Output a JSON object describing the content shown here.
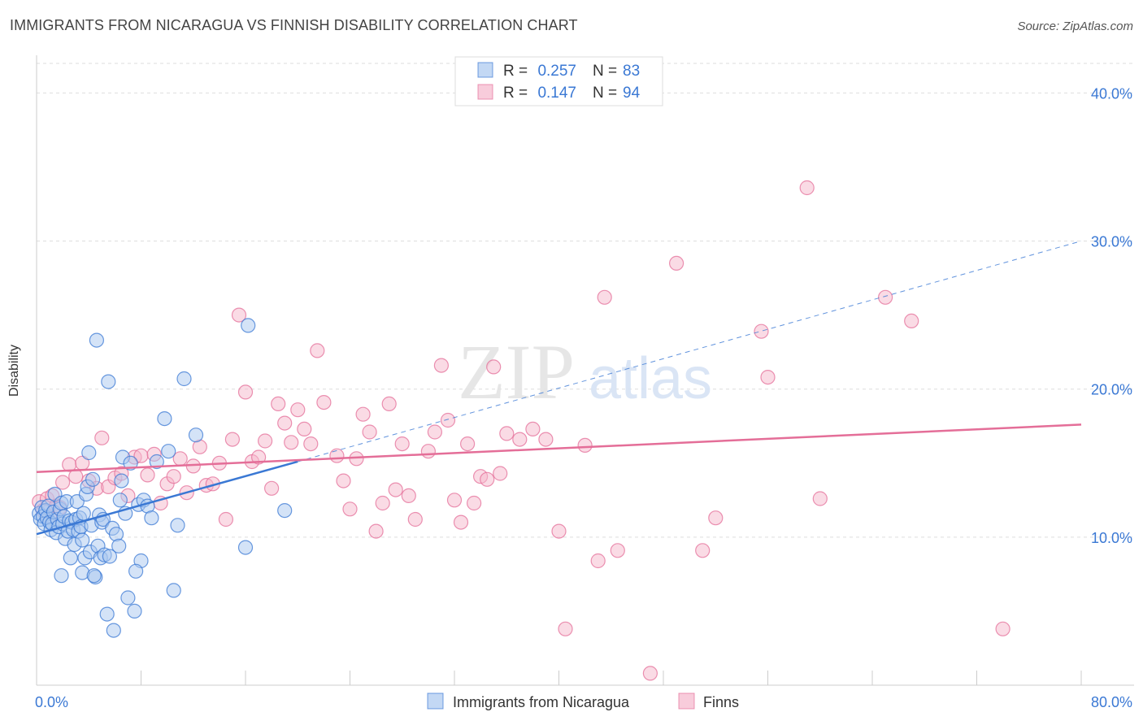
{
  "header": {
    "title": "IMMIGRANTS FROM NICARAGUA VS FINNISH DISABILITY CORRELATION CHART",
    "source": "Source: ZipAtlas.com"
  },
  "watermark": {
    "zip": "ZIP",
    "atlas": "atlas"
  },
  "colors": {
    "blue": "#3a78d4",
    "blue_fill": "#a9c8f0",
    "pink": "#e46e98",
    "pink_fill": "#f5b7cc",
    "axis_label": "#3a78d4",
    "grid": "#dddddd"
  },
  "chart_data": {
    "type": "scatter",
    "title": "IMMIGRANTS FROM NICARAGUA VS FINNISH DISABILITY CORRELATION CHART",
    "xlabel": "",
    "ylabel": "Disability",
    "xlim": [
      0,
      80
    ],
    "ylim": [
      0,
      42
    ],
    "x_tick_labels": [
      "0.0%",
      "80.0%"
    ],
    "y_ticks": [
      10,
      20,
      30,
      40
    ],
    "y_tick_labels": [
      "10.0%",
      "20.0%",
      "30.0%",
      "40.0%"
    ],
    "grid": true,
    "legend_position": "top-center",
    "legend": [
      {
        "r_label": "R =",
        "r_value": "0.257",
        "n_label": "N =",
        "n_value": "83"
      },
      {
        "r_label": "R =",
        "r_value": "0.147",
        "n_label": "N =",
        "n_value": "94"
      }
    ],
    "series": [
      {
        "name": "Immigrants from Nicaragua",
        "color": "#3a78d4",
        "trend": {
          "x": [
            0,
            20
          ],
          "y": [
            10.2,
            15.1
          ],
          "dashed_extension_x": [
            20,
            80
          ],
          "dashed_extension_y": [
            15.1,
            30.0
          ]
        },
        "points": [
          [
            0.2,
            11.6
          ],
          [
            0.3,
            11.2
          ],
          [
            0.4,
            12.0
          ],
          [
            0.5,
            11.4
          ],
          [
            0.6,
            10.9
          ],
          [
            0.7,
            11.8
          ],
          [
            0.8,
            11.3
          ],
          [
            0.9,
            12.1
          ],
          [
            1.0,
            11.0
          ],
          [
            1.1,
            10.5
          ],
          [
            1.2,
            10.9
          ],
          [
            1.3,
            11.7
          ],
          [
            1.4,
            12.9
          ],
          [
            1.5,
            10.3
          ],
          [
            1.6,
            11.2
          ],
          [
            1.7,
            10.7
          ],
          [
            1.8,
            11.9
          ],
          [
            1.9,
            12.3
          ],
          [
            2.0,
            10.9
          ],
          [
            2.1,
            11.4
          ],
          [
            2.2,
            9.9
          ],
          [
            2.3,
            12.4
          ],
          [
            2.4,
            10.4
          ],
          [
            2.5,
            11.1
          ],
          [
            2.6,
            8.6
          ],
          [
            2.7,
            11.0
          ],
          [
            2.8,
            10.5
          ],
          [
            2.9,
            9.5
          ],
          [
            3.0,
            11.2
          ],
          [
            3.1,
            12.4
          ],
          [
            3.2,
            10.4
          ],
          [
            3.3,
            11.3
          ],
          [
            3.4,
            10.7
          ],
          [
            3.5,
            9.8
          ],
          [
            3.6,
            11.6
          ],
          [
            3.7,
            8.6
          ],
          [
            3.8,
            12.9
          ],
          [
            3.9,
            13.4
          ],
          [
            4.0,
            15.7
          ],
          [
            4.1,
            9.0
          ],
          [
            4.2,
            10.8
          ],
          [
            4.3,
            13.9
          ],
          [
            4.5,
            7.3
          ],
          [
            4.6,
            23.3
          ],
          [
            4.7,
            9.4
          ],
          [
            4.8,
            11.5
          ],
          [
            4.9,
            8.6
          ],
          [
            5.0,
            11.0
          ],
          [
            5.1,
            11.2
          ],
          [
            5.2,
            8.8
          ],
          [
            5.4,
            4.8
          ],
          [
            5.5,
            20.5
          ],
          [
            5.6,
            8.7
          ],
          [
            5.8,
            10.6
          ],
          [
            5.9,
            3.7
          ],
          [
            6.1,
            10.2
          ],
          [
            6.3,
            9.4
          ],
          [
            6.4,
            12.5
          ],
          [
            6.5,
            13.8
          ],
          [
            6.6,
            15.4
          ],
          [
            6.8,
            11.6
          ],
          [
            7.0,
            5.9
          ],
          [
            7.2,
            15.0
          ],
          [
            7.5,
            5.0
          ],
          [
            7.8,
            12.2
          ],
          [
            8.0,
            8.4
          ],
          [
            8.2,
            12.5
          ],
          [
            8.5,
            12.1
          ],
          [
            8.8,
            11.3
          ],
          [
            9.2,
            15.1
          ],
          [
            9.8,
            18.0
          ],
          [
            10.1,
            15.8
          ],
          [
            10.5,
            6.4
          ],
          [
            10.8,
            10.8
          ],
          [
            11.3,
            20.7
          ],
          [
            12.2,
            16.9
          ],
          [
            16.2,
            24.3
          ],
          [
            16.0,
            9.3
          ],
          [
            19.0,
            11.8
          ],
          [
            1.9,
            7.4
          ],
          [
            3.5,
            7.6
          ],
          [
            4.4,
            7.4
          ],
          [
            7.6,
            7.7
          ]
        ]
      },
      {
        "name": "Finns",
        "color": "#e46e98",
        "trend": {
          "x": [
            0,
            80
          ],
          "y": [
            14.4,
            17.6
          ]
        },
        "points": [
          [
            0.2,
            12.4
          ],
          [
            0.5,
            11.8
          ],
          [
            0.8,
            12.6
          ],
          [
            1.0,
            11.4
          ],
          [
            1.2,
            12.8
          ],
          [
            1.5,
            12.1
          ],
          [
            2.0,
            13.7
          ],
          [
            2.5,
            14.9
          ],
          [
            3.0,
            14.1
          ],
          [
            3.5,
            15.0
          ],
          [
            4.0,
            13.8
          ],
          [
            4.6,
            13.3
          ],
          [
            5.0,
            16.7
          ],
          [
            5.5,
            13.4
          ],
          [
            6.0,
            14.0
          ],
          [
            6.5,
            14.3
          ],
          [
            7.0,
            12.8
          ],
          [
            7.5,
            15.4
          ],
          [
            8.0,
            15.5
          ],
          [
            8.5,
            14.2
          ],
          [
            9.0,
            15.6
          ],
          [
            9.5,
            12.3
          ],
          [
            10.0,
            13.6
          ],
          [
            10.5,
            14.1
          ],
          [
            11.0,
            15.3
          ],
          [
            11.5,
            13.0
          ],
          [
            12.0,
            14.8
          ],
          [
            12.5,
            16.1
          ],
          [
            13.0,
            13.5
          ],
          [
            13.5,
            13.6
          ],
          [
            14.0,
            15.0
          ],
          [
            14.5,
            11.2
          ],
          [
            15.0,
            16.6
          ],
          [
            15.5,
            25.0
          ],
          [
            16.0,
            19.8
          ],
          [
            16.5,
            15.1
          ],
          [
            17.0,
            15.4
          ],
          [
            17.5,
            16.5
          ],
          [
            18.0,
            13.3
          ],
          [
            18.5,
            19.0
          ],
          [
            19.0,
            17.7
          ],
          [
            19.5,
            16.4
          ],
          [
            20.0,
            18.6
          ],
          [
            20.5,
            17.3
          ],
          [
            21.0,
            16.3
          ],
          [
            21.5,
            22.6
          ],
          [
            22.0,
            19.1
          ],
          [
            23.0,
            15.5
          ],
          [
            23.5,
            13.8
          ],
          [
            24.0,
            11.9
          ],
          [
            24.5,
            15.3
          ],
          [
            25.0,
            18.3
          ],
          [
            25.5,
            17.1
          ],
          [
            26.0,
            10.4
          ],
          [
            26.5,
            12.3
          ],
          [
            27.0,
            19.0
          ],
          [
            27.5,
            13.2
          ],
          [
            28.0,
            16.3
          ],
          [
            28.5,
            12.8
          ],
          [
            29.0,
            11.2
          ],
          [
            30.0,
            15.8
          ],
          [
            30.5,
            17.1
          ],
          [
            31.0,
            21.6
          ],
          [
            31.5,
            17.9
          ],
          [
            32.0,
            12.5
          ],
          [
            32.5,
            11.0
          ],
          [
            33.0,
            16.3
          ],
          [
            33.5,
            12.3
          ],
          [
            34.0,
            14.1
          ],
          [
            34.5,
            13.9
          ],
          [
            35.0,
            21.5
          ],
          [
            35.5,
            14.3
          ],
          [
            36.0,
            17.0
          ],
          [
            37.0,
            16.6
          ],
          [
            38.0,
            17.3
          ],
          [
            39.0,
            16.6
          ],
          [
            40.0,
            10.4
          ],
          [
            40.5,
            3.8
          ],
          [
            42.0,
            16.2
          ],
          [
            43.0,
            8.4
          ],
          [
            43.5,
            26.2
          ],
          [
            44.5,
            9.1
          ],
          [
            47.0,
            0.8
          ],
          [
            49.0,
            28.5
          ],
          [
            51.0,
            9.1
          ],
          [
            52.0,
            11.3
          ],
          [
            55.5,
            23.9
          ],
          [
            56.0,
            20.8
          ],
          [
            59.0,
            33.6
          ],
          [
            60.0,
            12.6
          ],
          [
            65.0,
            26.2
          ],
          [
            67.0,
            24.6
          ],
          [
            74.0,
            3.8
          ],
          [
            1.8,
            12.0
          ]
        ]
      }
    ]
  },
  "legend_bottom": [
    "Immigrants from Nicaragua",
    "Finns"
  ]
}
